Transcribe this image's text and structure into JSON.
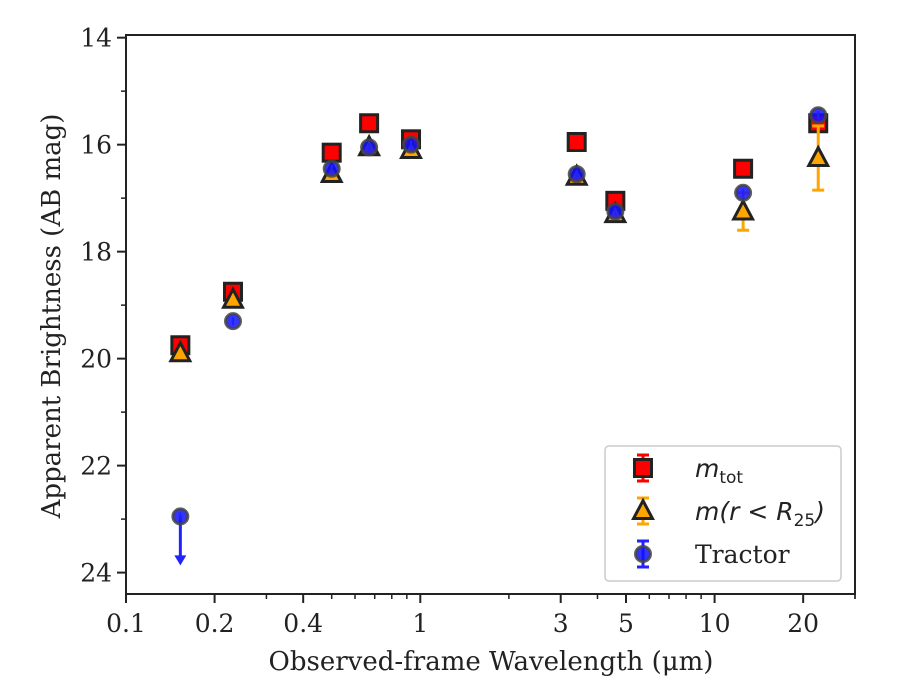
{
  "chart_data": {
    "type": "scatter",
    "xlabel": "Observed-frame Wavelength (μm)",
    "ylabel": "Apparent Brightness (AB mag)",
    "x_scale": "log",
    "xlim": [
      0.1,
      30
    ],
    "ylim": [
      24.4,
      13.95
    ],
    "y_inverted": true,
    "x_tick_labels": [
      {
        "value": 0.1,
        "label": "0.1"
      },
      {
        "value": 0.2,
        "label": "0.2"
      },
      {
        "value": 0.4,
        "label": "0.4"
      },
      {
        "value": 1,
        "label": "1"
      },
      {
        "value": 3,
        "label": "3"
      },
      {
        "value": 5,
        "label": "5"
      },
      {
        "value": 10,
        "label": "10"
      },
      {
        "value": 20,
        "label": "20"
      }
    ],
    "y_ticks": [
      14,
      16,
      18,
      20,
      22,
      24
    ],
    "grid": false,
    "legend_position": "bottom-right",
    "series": [
      {
        "name": "m_tot",
        "legend_main": "m",
        "legend_sub": "tot",
        "marker": "square",
        "color": "#ff0000",
        "edge_color": "#222222",
        "error_color": "#ff0000",
        "points": [
          {
            "x": 0.153,
            "y": 19.75
          },
          {
            "x": 0.231,
            "y": 18.75
          },
          {
            "x": 0.5,
            "y": 16.15
          },
          {
            "x": 0.67,
            "y": 15.6
          },
          {
            "x": 0.93,
            "y": 15.9
          },
          {
            "x": 3.4,
            "y": 15.95
          },
          {
            "x": 4.6,
            "y": 17.05
          },
          {
            "x": 12.5,
            "y": 16.45
          },
          {
            "x": 22.5,
            "y": 15.6
          }
        ]
      },
      {
        "name": "m(r<R_25)",
        "legend_main": "m(r < R",
        "legend_sub": "25",
        "legend_tail": ")",
        "marker": "triangle",
        "color": "#ffa500",
        "edge_color": "#222222",
        "error_color": "#ffa500",
        "points": [
          {
            "x": 0.153,
            "y": 19.9
          },
          {
            "x": 0.231,
            "y": 18.9
          },
          {
            "x": 0.5,
            "y": 16.55
          },
          {
            "x": 0.67,
            "y": 16.05
          },
          {
            "x": 0.93,
            "y": 16.1
          },
          {
            "x": 3.4,
            "y": 16.6
          },
          {
            "x": 4.6,
            "y": 17.3
          },
          {
            "x": 12.5,
            "y": 17.25,
            "yerr": 0.35
          },
          {
            "x": 22.5,
            "y": 16.25,
            "yerr": 0.6
          }
        ]
      },
      {
        "name": "Tractor",
        "legend_main": "Tractor",
        "marker": "circle",
        "color": "#1010ff",
        "edge_color": "#444444",
        "error_color": "#2222ff",
        "points": [
          {
            "x": 0.153,
            "y": 22.95,
            "upper_limit": true
          },
          {
            "x": 0.231,
            "y": 19.3
          },
          {
            "x": 0.5,
            "y": 16.45
          },
          {
            "x": 0.67,
            "y": 16.05
          },
          {
            "x": 0.93,
            "y": 16.0
          },
          {
            "x": 3.4,
            "y": 16.55
          },
          {
            "x": 4.6,
            "y": 17.25
          },
          {
            "x": 12.5,
            "y": 16.9
          },
          {
            "x": 22.5,
            "y": 15.45
          }
        ]
      }
    ]
  }
}
